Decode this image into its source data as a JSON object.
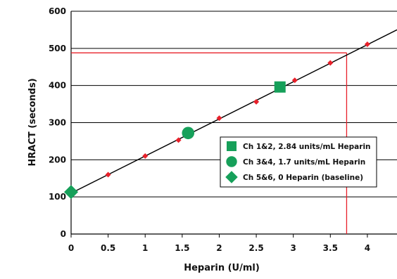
{
  "chart_data": {
    "type": "scatter",
    "xlabel": "Heparin (U/ml)",
    "ylabel": "HRACT (seconds)",
    "xlim": [
      0,
      4.4
    ],
    "ylim": [
      0,
      600
    ],
    "x_ticks": [
      "0",
      "0.5",
      "1",
      "1.5",
      "2",
      "2.5",
      "3",
      "3.5",
      "4"
    ],
    "y_ticks": [
      "0",
      "100",
      "200",
      "300",
      "400",
      "500",
      "600"
    ],
    "grid": "horizontal",
    "legend_position": "right",
    "colors": {
      "line": "#000000",
      "points": "#e8202a",
      "markers": "#16a05a",
      "reference": "#e8202a"
    },
    "fit_line": {
      "slope": 100,
      "intercept": 110,
      "x_range": [
        0,
        4.4
      ]
    },
    "calibration_points": {
      "x": [
        0.5,
        1.0,
        1.45,
        2.0,
        2.5,
        3.02,
        3.5,
        4.0
      ],
      "y": [
        160,
        210,
        253,
        312,
        356,
        414,
        461,
        511
      ]
    },
    "reference_lines": [
      {
        "type": "horizontal",
        "y": 488,
        "x_from": 0,
        "x_to": 3.72
      },
      {
        "type": "vertical",
        "x": 3.72,
        "y_from": 0,
        "y_to": 488
      }
    ],
    "series": [
      {
        "name": "Ch 1&2, 2.84 units/mL Heparin",
        "marker": "square",
        "x": [
          2.82
        ],
        "y": [
          396
        ]
      },
      {
        "name": "Ch 3&4, 1.7 units/mL Heparin",
        "marker": "circle",
        "x": [
          1.58
        ],
        "y": [
          272
        ]
      },
      {
        "name": "Ch 5&6, 0 Heparin (baseline)",
        "marker": "diamond",
        "x": [
          0
        ],
        "y": [
          113
        ]
      }
    ]
  }
}
